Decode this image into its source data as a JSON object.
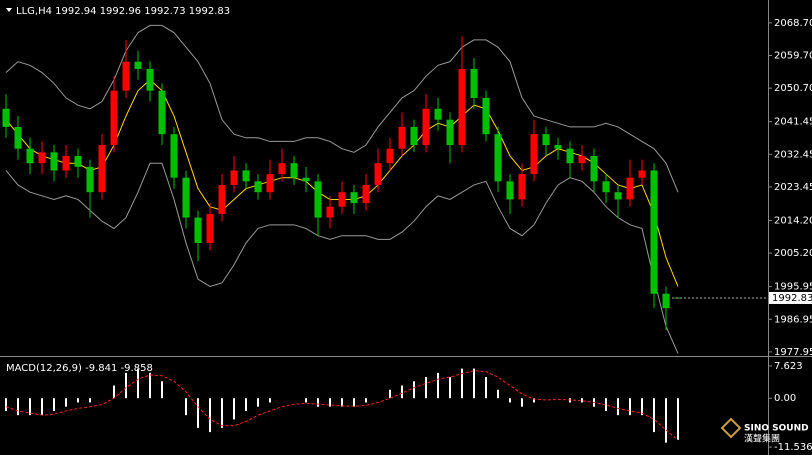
{
  "chart_data": [
    {
      "type": "candlestick",
      "title": "LLG,H4",
      "up_color": "#ff0000",
      "down_color": "#00c000",
      "open": [
        2045,
        2040,
        2034,
        2030,
        2033,
        2028,
        2032,
        2029,
        2022,
        2035,
        2050,
        2058,
        2056,
        2050,
        2038,
        2026,
        2015,
        2008,
        2016,
        2024,
        2028,
        2025,
        2022,
        2027,
        2030,
        2026,
        2025,
        2015,
        2018,
        2022,
        2019,
        2024,
        2030,
        2034,
        2040,
        2035,
        2045,
        2042,
        2035,
        2056,
        2048,
        2038,
        2025,
        2020,
        2027,
        2038,
        2035,
        2034,
        2030,
        2032,
        2025,
        2022,
        2020,
        2026,
        2028,
        1994,
        1992.94
      ],
      "high": [
        2049,
        2043,
        2037,
        2036,
        2035,
        2035,
        2034,
        2031,
        2038,
        2054,
        2064,
        2061,
        2058,
        2052,
        2040,
        2028,
        2017,
        2019,
        2027,
        2032,
        2030,
        2027,
        2031,
        2034,
        2032,
        2029,
        2027,
        2021,
        2025,
        2024,
        2027,
        2034,
        2037,
        2044,
        2042,
        2049,
        2048,
        2044,
        2065,
        2059,
        2050,
        2040,
        2027,
        2030,
        2042,
        2040,
        2037,
        2036,
        2035,
        2034,
        2027,
        2024,
        2031,
        2031,
        2030,
        1996,
        1992.96
      ],
      "low": [
        2037,
        2031,
        2027,
        2027,
        2025,
        2026,
        2026,
        2015,
        2020,
        2033,
        2048,
        2053,
        2047,
        2035,
        2023,
        2012,
        2003,
        2006,
        2014,
        2022,
        2023,
        2020,
        2020,
        2025,
        2024,
        2022,
        2010,
        2012,
        2016,
        2016,
        2017,
        2022,
        2028,
        2032,
        2033,
        2033,
        2039,
        2030,
        2033,
        2045,
        2036,
        2022,
        2016,
        2018,
        2025,
        2032,
        2031,
        2026,
        2028,
        2022,
        2019,
        2015,
        2018,
        2024,
        1990,
        1984,
        1992.73
      ],
      "close": [
        2040,
        2034,
        2030,
        2033,
        2028,
        2032,
        2029,
        2022,
        2035,
        2050,
        2058,
        2056,
        2050,
        2038,
        2026,
        2015,
        2008,
        2016,
        2024,
        2028,
        2025,
        2022,
        2027,
        2030,
        2026,
        2025,
        2015,
        2018,
        2022,
        2019,
        2024,
        2030,
        2034,
        2040,
        2035,
        2045,
        2042,
        2035,
        2056,
        2048,
        2038,
        2025,
        2020,
        2027,
        2038,
        2035,
        2034,
        2030,
        2032,
        2025,
        2022,
        2020,
        2026,
        2028,
        1994,
        1990,
        1992.83
      ],
      "lines": [
        {
          "color": "#ffd700",
          "values": [
            2042,
            2038,
            2034,
            2032,
            2031,
            2030,
            2030,
            2028,
            2029,
            2035,
            2043,
            2050,
            2053,
            2050,
            2043,
            2033,
            2023,
            2018,
            2017,
            2020,
            2023,
            2024,
            2025,
            2026,
            2026,
            2025,
            2022,
            2020,
            2020,
            2020,
            2021,
            2024,
            2028,
            2032,
            2035,
            2039,
            2041,
            2040,
            2043,
            2046,
            2045,
            2039,
            2032,
            2028,
            2029,
            2032,
            2034,
            2033,
            2032,
            2030,
            2027,
            2024,
            2023,
            2024,
            2016,
            2004,
            1996
          ]
        },
        {
          "color": "#9a9a9a",
          "values": [
            2055,
            2058,
            2057,
            2055,
            2052,
            2048,
            2046,
            2045,
            2047,
            2053,
            2061,
            2066,
            2068,
            2068,
            2066,
            2062,
            2058,
            2052,
            2042,
            2038,
            2037,
            2037,
            2036,
            2036,
            2036,
            2037,
            2037,
            2036,
            2034,
            2033,
            2035,
            2040,
            2044,
            2048,
            2050,
            2054,
            2057,
            2058,
            2062,
            2064,
            2064,
            2062,
            2058,
            2048,
            2043,
            2042,
            2041,
            2040,
            2040,
            2040,
            2041,
            2040,
            2038,
            2036,
            2034,
            2030,
            2022
          ]
        },
        {
          "color": "#9a9a9a",
          "values": [
            2028,
            2024,
            2022,
            2021,
            2020,
            2021,
            2020,
            2017,
            2014,
            2012,
            2015,
            2022,
            2030,
            2030,
            2020,
            2008,
            1998,
            1996,
            1997,
            2002,
            2008,
            2012,
            2013,
            2013,
            2013,
            2012,
            2010,
            2009,
            2010,
            2010,
            2010,
            2009,
            2009,
            2011,
            2014,
            2018,
            2021,
            2020,
            2022,
            2024,
            2025,
            2018,
            2012,
            2010,
            2013,
            2019,
            2024,
            2026,
            2025,
            2022,
            2018,
            2015,
            2013,
            2012,
            1998,
            1985,
            1977.5
          ]
        }
      ],
      "ylim": [
        1977.1,
        2072.8
      ],
      "yticks": [
        {
          "value": 2068.7,
          "label": "2068.70"
        },
        {
          "value": 2059.7,
          "label": "2059.70"
        },
        {
          "value": 2050.7,
          "label": "2050.70"
        },
        2041.45,
        2032.45,
        2023.45,
        {
          "value": 2014.2,
          "label": "2014.20"
        },
        {
          "value": 2005.2,
          "label": "2005.20"
        },
        1995.95,
        1986.95,
        1977.95
      ]
    },
    {
      "type": "macd",
      "title": "MACD(12,26,9)",
      "series": [
        {
          "color": "#ffffff",
          "style": "histogram",
          "values": [
            -3,
            -4,
            -4,
            -4,
            -3,
            -2,
            -1,
            -1,
            0,
            3,
            6,
            7,
            6,
            4,
            0,
            -4,
            -7,
            -8,
            -7,
            -5,
            -3,
            -2,
            -1,
            0,
            0,
            -1,
            -2,
            -2,
            -2,
            -2,
            -1,
            0,
            2,
            3,
            4,
            5,
            6,
            5,
            7,
            7,
            5,
            2,
            -1,
            -2,
            -1,
            0,
            0,
            -1,
            -1,
            -2,
            -3,
            -4,
            -4,
            -4,
            -8,
            -10.5,
            -9.841
          ]
        },
        {
          "color": "#ff2020",
          "style": "dashed",
          "values": [
            -2,
            -3,
            -3.5,
            -4,
            -3.8,
            -3,
            -2.4,
            -2,
            -1.5,
            0,
            2.5,
            4.5,
            5.5,
            5.3,
            4,
            1.5,
            -2,
            -5,
            -6.5,
            -6.5,
            -5.5,
            -4,
            -3,
            -2,
            -1.4,
            -1.2,
            -1.4,
            -1.6,
            -1.8,
            -1.9,
            -1.7,
            -1,
            0,
            1.2,
            2.5,
            3.5,
            4.5,
            5,
            5.8,
            6.5,
            6.3,
            5,
            3,
            1,
            -0.2,
            -0.4,
            -0.3,
            -0.4,
            -0.6,
            -1,
            -1.6,
            -2.4,
            -3,
            -3.5,
            -5,
            -7.5,
            -9.858
          ]
        }
      ],
      "ylim": [
        -12.7,
        9.5
      ],
      "yticks": [
        7.623,
        {
          "value": 0,
          "label": "0.00"
        },
        -11.536
      ]
    }
  ],
  "logo": {
    "name": "SINO SOUND",
    "chinese": "漢聲集團"
  }
}
